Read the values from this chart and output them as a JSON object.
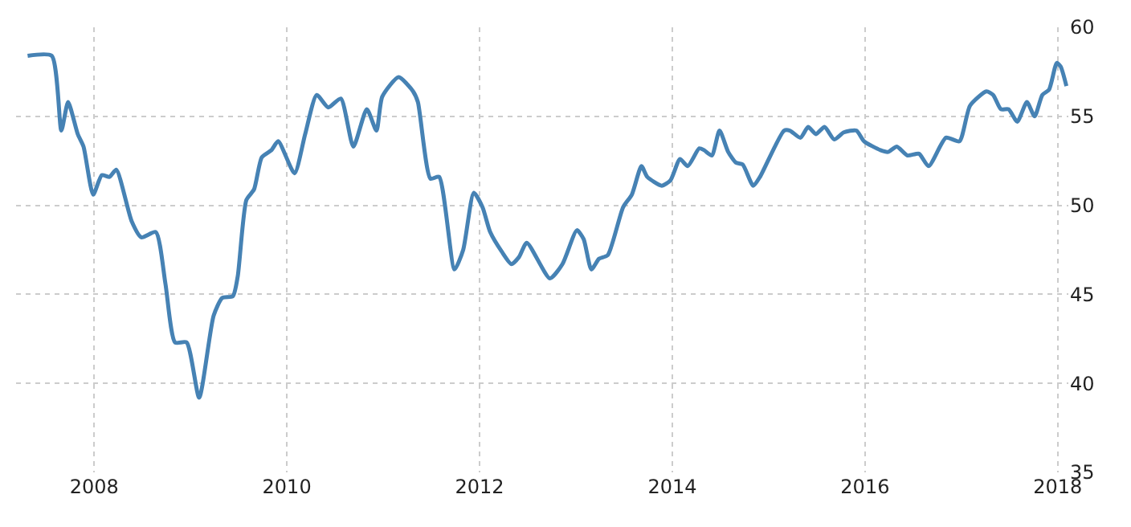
{
  "chart_data": {
    "type": "line",
    "x": [
      2007.31,
      2007.56,
      2007.66,
      2007.73,
      2007.83,
      2007.89,
      2007.99,
      2008.08,
      2008.16,
      2008.23,
      2008.39,
      2008.49,
      2008.64,
      2008.74,
      2008.84,
      2008.96,
      2009.09,
      2009.24,
      2009.33,
      2009.44,
      2009.49,
      2009.58,
      2009.66,
      2009.74,
      2009.84,
      2009.91,
      2010.08,
      2010.19,
      2010.31,
      2010.43,
      2010.56,
      2010.69,
      2010.83,
      2010.93,
      2010.99,
      2011.16,
      2011.31,
      2011.36,
      2011.49,
      2011.58,
      2011.74,
      2011.83,
      2011.94,
      2012.03,
      2012.11,
      2012.23,
      2012.33,
      2012.41,
      2012.49,
      2012.73,
      2012.86,
      2013.01,
      2013.08,
      2013.16,
      2013.24,
      2013.33,
      2013.49,
      2013.58,
      2013.68,
      2013.74,
      2013.89,
      2013.98,
      2014.08,
      2014.16,
      2014.28,
      2014.33,
      2014.41,
      2014.49,
      2014.58,
      2014.66,
      2014.73,
      2014.84,
      2014.91,
      2015.16,
      2015.22,
      2015.33,
      2015.41,
      2015.49,
      2015.58,
      2015.68,
      2015.78,
      2015.91,
      2015.99,
      2016.16,
      2016.24,
      2016.33,
      2016.44,
      2016.56,
      2016.66,
      2016.84,
      2016.98,
      2017.09,
      2017.26,
      2017.33,
      2017.41,
      2017.49,
      2017.58,
      2017.68,
      2017.76,
      2017.84,
      2017.91,
      2017.99,
      2018.03,
      2018.09
    ],
    "series": [
      {
        "color": "#4682b4",
        "values": [
          58.4,
          58.4,
          54.2,
          55.8,
          54.0,
          53.3,
          50.6,
          51.7,
          51.6,
          52.0,
          49.1,
          48.2,
          48.5,
          45.6,
          42.3,
          42.3,
          39.2,
          43.8,
          44.8,
          44.9,
          46.0,
          50.3,
          50.9,
          52.7,
          53.1,
          53.6,
          51.8,
          54.0,
          56.2,
          55.5,
          56.0,
          53.3,
          55.4,
          54.2,
          56.1,
          57.2,
          56.4,
          55.8,
          51.5,
          51.6,
          46.4,
          47.5,
          50.7,
          49.9,
          48.5,
          47.4,
          46.7,
          47.1,
          47.9,
          45.9,
          46.7,
          48.6,
          48.1,
          46.4,
          47.0,
          47.2,
          49.9,
          50.6,
          52.2,
          51.6,
          51.1,
          51.4,
          52.6,
          52.2,
          53.2,
          53.1,
          52.8,
          54.2,
          53.0,
          52.4,
          52.3,
          51.1,
          51.6,
          54.2,
          54.2,
          53.8,
          54.4,
          54.0,
          54.4,
          53.7,
          54.1,
          54.2,
          53.6,
          53.1,
          53.0,
          53.3,
          52.8,
          52.9,
          52.2,
          53.8,
          53.6,
          55.6,
          56.4,
          56.2,
          55.4,
          55.4,
          54.7,
          55.8,
          55.0,
          56.2,
          56.5,
          58.0,
          57.8,
          56.7
        ]
      }
    ],
    "xlim": [
      2007.19,
      2018.11
    ],
    "xticks": [
      2008,
      2010,
      2012,
      2014,
      2016,
      2018
    ],
    "ylim": [
      35,
      60
    ],
    "yticks": [
      35,
      40,
      45,
      50,
      55,
      60
    ],
    "grid": true,
    "line_style": "solid",
    "marker": "none"
  }
}
